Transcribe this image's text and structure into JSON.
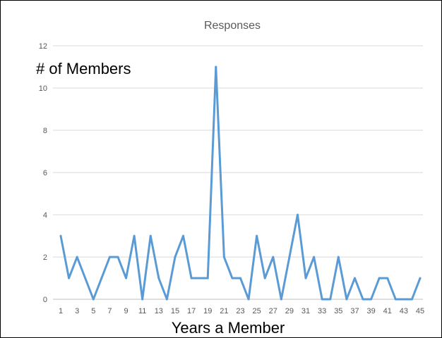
{
  "chart_data": {
    "type": "line",
    "title": "Responses",
    "xlabel": "Years a Member",
    "ylabel": "# of Members",
    "ylim": [
      0,
      12
    ],
    "yticks": [
      0,
      2,
      4,
      6,
      8,
      10,
      12
    ],
    "grid": true,
    "legend": "none",
    "line_color": "#5b9bd5",
    "x": [
      1,
      2,
      3,
      4,
      5,
      6,
      7,
      8,
      9,
      10,
      11,
      12,
      13,
      14,
      15,
      16,
      17,
      18,
      19,
      20,
      21,
      22,
      23,
      24,
      25,
      26,
      27,
      28,
      29,
      30,
      31,
      32,
      33,
      34,
      35,
      36,
      37,
      38,
      39,
      40,
      41,
      42,
      43,
      44,
      45
    ],
    "xticklabels": [
      "1",
      "3",
      "5",
      "7",
      "9",
      "11",
      "13",
      "15",
      "17",
      "19",
      "21",
      "23",
      "25",
      "27",
      "29",
      "31",
      "33",
      "35",
      "37",
      "39",
      "41",
      "43",
      "45"
    ],
    "series": [
      {
        "values": [
          3,
          1,
          2,
          1,
          0,
          1,
          2,
          2,
          1,
          3,
          0,
          3,
          1,
          0,
          2,
          3,
          1,
          1,
          1,
          11,
          2,
          1,
          1,
          0,
          3,
          1,
          2,
          0,
          2,
          4,
          1,
          2,
          0,
          0,
          2,
          0,
          1,
          0,
          0,
          1,
          1,
          0,
          0,
          0,
          1
        ]
      }
    ]
  }
}
